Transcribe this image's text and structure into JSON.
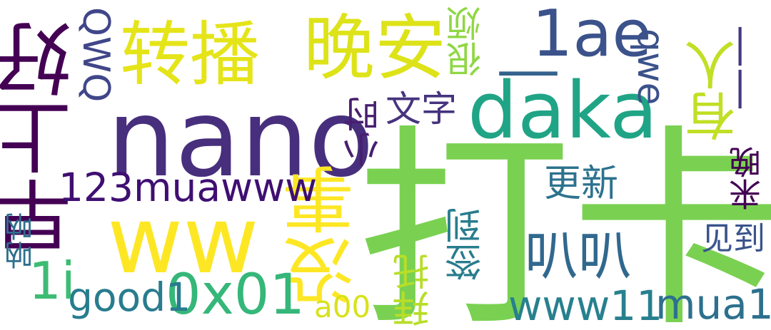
{
  "words": {
    "daka": {
      "text": "打卡",
      "color": "#7ad151"
    },
    "nano": {
      "text": "nano",
      "color": "#472f7d"
    },
    "ww": {
      "text": "ww",
      "color": "#fde725"
    },
    "zaoshanghao": {
      "text": "早上好",
      "color": "#440154"
    },
    "daka_en": {
      "text": "daka",
      "color": "#20a486"
    },
    "wanan": {
      "text": "晚安",
      "color": "#dde318"
    },
    "zhuanbo": {
      "text": "转播",
      "color": "#e5e419"
    },
    "underline_a": {
      "text": "__",
      "color": "#33638d"
    },
    "lae": {
      "text": "1ae",
      "color": "#3b528b"
    },
    "dash_b": {
      "text": "——",
      "color": "#453781"
    },
    "meishi": {
      "text": "没事",
      "color": "#fde725"
    },
    "m123": {
      "text": "123muawww",
      "color": "#3f0f72"
    },
    "x0x01": {
      "text": "0x01",
      "color": "#35b779"
    },
    "good1": {
      "text": "good1",
      "color": "#287c8e"
    },
    "li": {
      "text": "1i",
      "color": "#3dbc74"
    },
    "babai": {
      "text": "叭叭",
      "color": "#31688e"
    },
    "www11": {
      "text": "www11",
      "color": "#27808e"
    },
    "mua1": {
      "text": "mua1",
      "color": "#2d708e"
    },
    "a00": {
      "text": "a00",
      "color": "#d8e219"
    },
    "baituo": {
      "text": "拜托",
      "color": "#b8de29"
    },
    "qiandao": {
      "text": "签到",
      "color": "#287c8e"
    },
    "gengxin": {
      "text": "更新",
      "color": "#2c728e"
    },
    "wenzi": {
      "text": "文字",
      "color": "#46337e"
    },
    "xiaoshi": {
      "text": "小时",
      "color": "#481f70"
    },
    "henfan": {
      "text": "很烦",
      "color": "#8fd744"
    },
    "qwq": {
      "text": "QWQ",
      "color": "#404688"
    },
    "qwe": {
      "text": "qwe",
      "color": "#3b528b"
    },
    "youren": {
      "text": "有人",
      "color": "#c0df25"
    },
    "jianmian": {
      "text": "见到",
      "color": "#3a548c"
    },
    "laiwan": {
      "text": "来晚",
      "color": "#440154"
    },
    "nana": {
      "text": "呐呐",
      "color": "#2e6f8e"
    }
  }
}
